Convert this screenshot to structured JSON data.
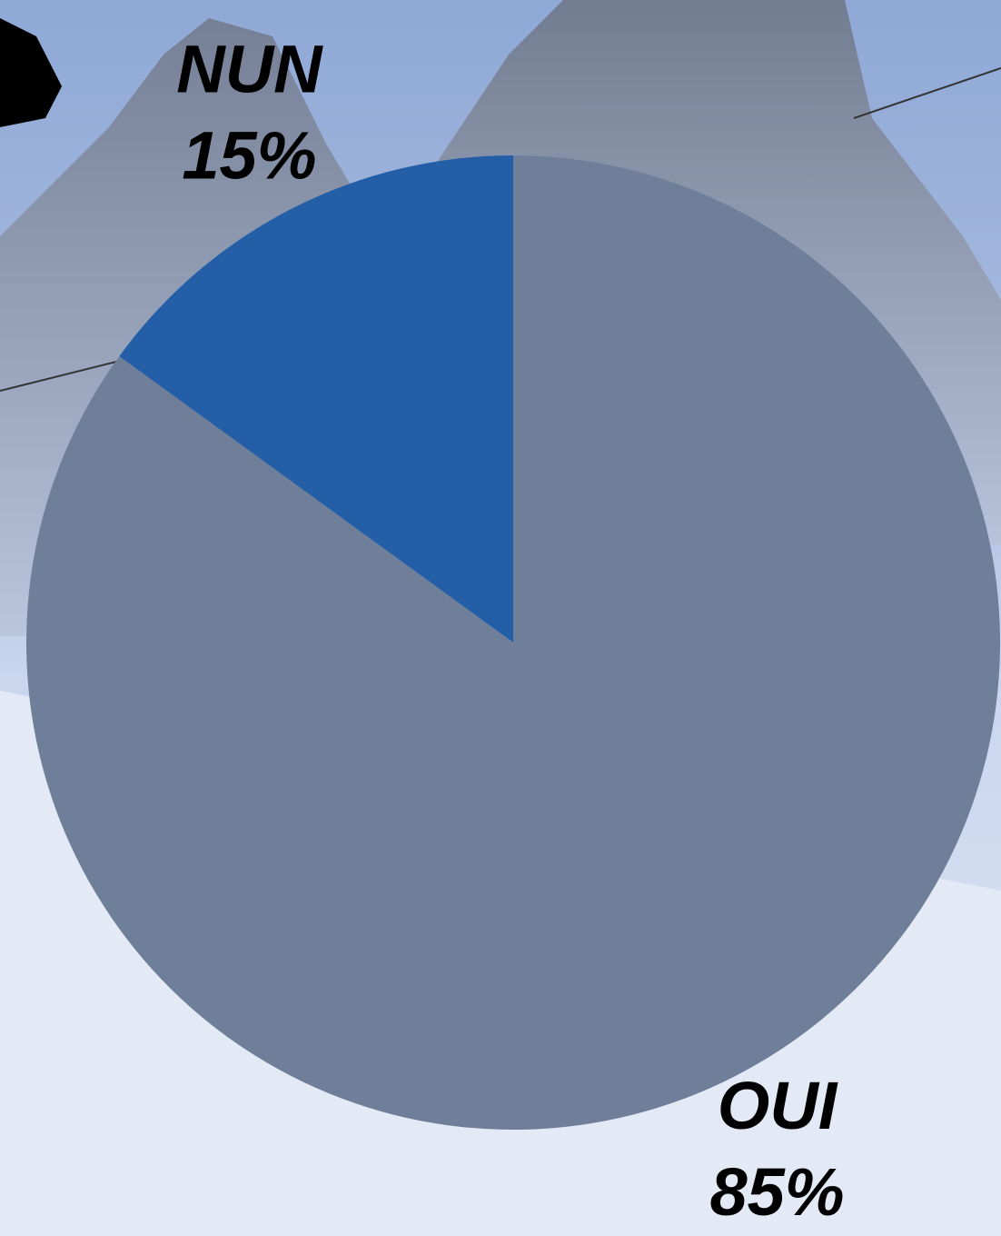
{
  "chart_data": {
    "type": "pie",
    "categories": [
      "OUI",
      "NUN"
    ],
    "values": [
      85,
      15
    ],
    "value_labels": [
      "85%",
      "15%"
    ],
    "colors": [
      "#6f7f99",
      "#235ea6"
    ]
  }
}
